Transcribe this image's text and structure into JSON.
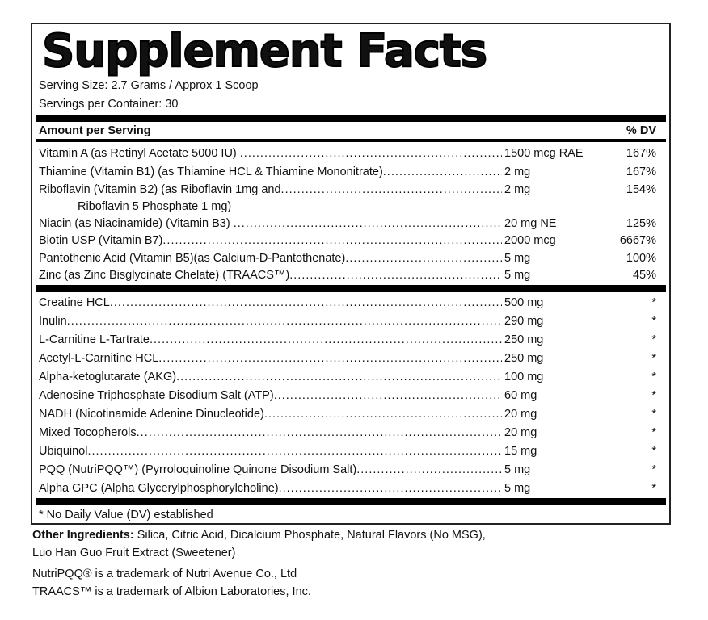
{
  "title": "Supplement Facts",
  "serving_size": "Serving Size: 2.7 Grams / Approx 1 Scoop",
  "servings_per_container": "Servings per Container: 30",
  "header": {
    "amount": "Amount per Serving",
    "dv": "% DV"
  },
  "vitamins": [
    {
      "name": "Vitamin A (as Retinyl Acetate 5000 IU) ",
      "amount": "1500 mcg RAE",
      "dv": "167%"
    },
    {
      "name": "Thiamine (Vitamin B1) (as Thiamine HCL & Thiamine Mononitrate)",
      "amount": "2 mg",
      "dv": "167%"
    },
    {
      "name": "Riboflavin (Vitamin B2) (as Riboflavin 1mg and",
      "amount": "2 mg",
      "dv": "154%",
      "continuation": "Riboflavin 5 Phosphate 1 mg)"
    },
    {
      "name": "Niacin (as Niacinamide) (Vitamin B3) ",
      "amount": "20 mg NE",
      "dv": "125%"
    },
    {
      "name": "Biotin USP (Vitamin B7)",
      "amount": "2000 mcg",
      "dv": "6667%"
    },
    {
      "name": "Pantothenic Acid (Vitamin B5)(as Calcium-D-Pantothenate)",
      "amount": "5 mg",
      "dv": "100%"
    },
    {
      "name": "Zinc (as Zinc Bisglycinate Chelate) (TRAACS™)",
      "amount": "5 mg",
      "dv": "45%"
    }
  ],
  "ingredients": [
    {
      "name": "Creatine HCL",
      "amount": "500 mg",
      "dv": "*"
    },
    {
      "name": "Inulin",
      "amount": "290 mg",
      "dv": "*"
    },
    {
      "name": "L-Carnitine L-Tartrate",
      "amount": "250 mg",
      "dv": "*"
    },
    {
      "name": "Acetyl-L-Carnitine HCL",
      "amount": "250 mg",
      "dv": "*"
    },
    {
      "name": "Alpha-ketoglutarate (AKG)",
      "amount": "100 mg",
      "dv": "*"
    },
    {
      "name": "Adenosine Triphosphate Disodium Salt (ATP)",
      "amount": "60 mg",
      "dv": "*"
    },
    {
      "name": "NADH (Nicotinamide Adenine Dinucleotide)",
      "amount": "20 mg",
      "dv": "*"
    },
    {
      "name": "Mixed Tocopherols",
      "amount": "20 mg",
      "dv": "*"
    },
    {
      "name": "Ubiquinol",
      "amount": "15 mg",
      "dv": "*"
    },
    {
      "name": "PQQ (NutriPQQ™) (Pyrroloquinoline Quinone Disodium Salt)",
      "amount": "5 mg",
      "dv": "*"
    },
    {
      "name": "Alpha GPC (Alpha Glycerylphosphorylcholine)",
      "amount": "5 mg",
      "dv": "*"
    }
  ],
  "footnote": "* No Daily Value (DV) established",
  "other_ingredients": {
    "label": "Other Ingredients:",
    "line1": " Silica, Citric Acid, Dicalcium Phosphate, Natural Flavors (No MSG),",
    "line2": "Luo Han Guo Fruit Extract (Sweetener)"
  },
  "trademarks": [
    "NutriPQQ® is a trademark of Nutri Avenue Co., Ltd",
    "TRAACS™ is a trademark of Albion Laboratories, Inc."
  ]
}
